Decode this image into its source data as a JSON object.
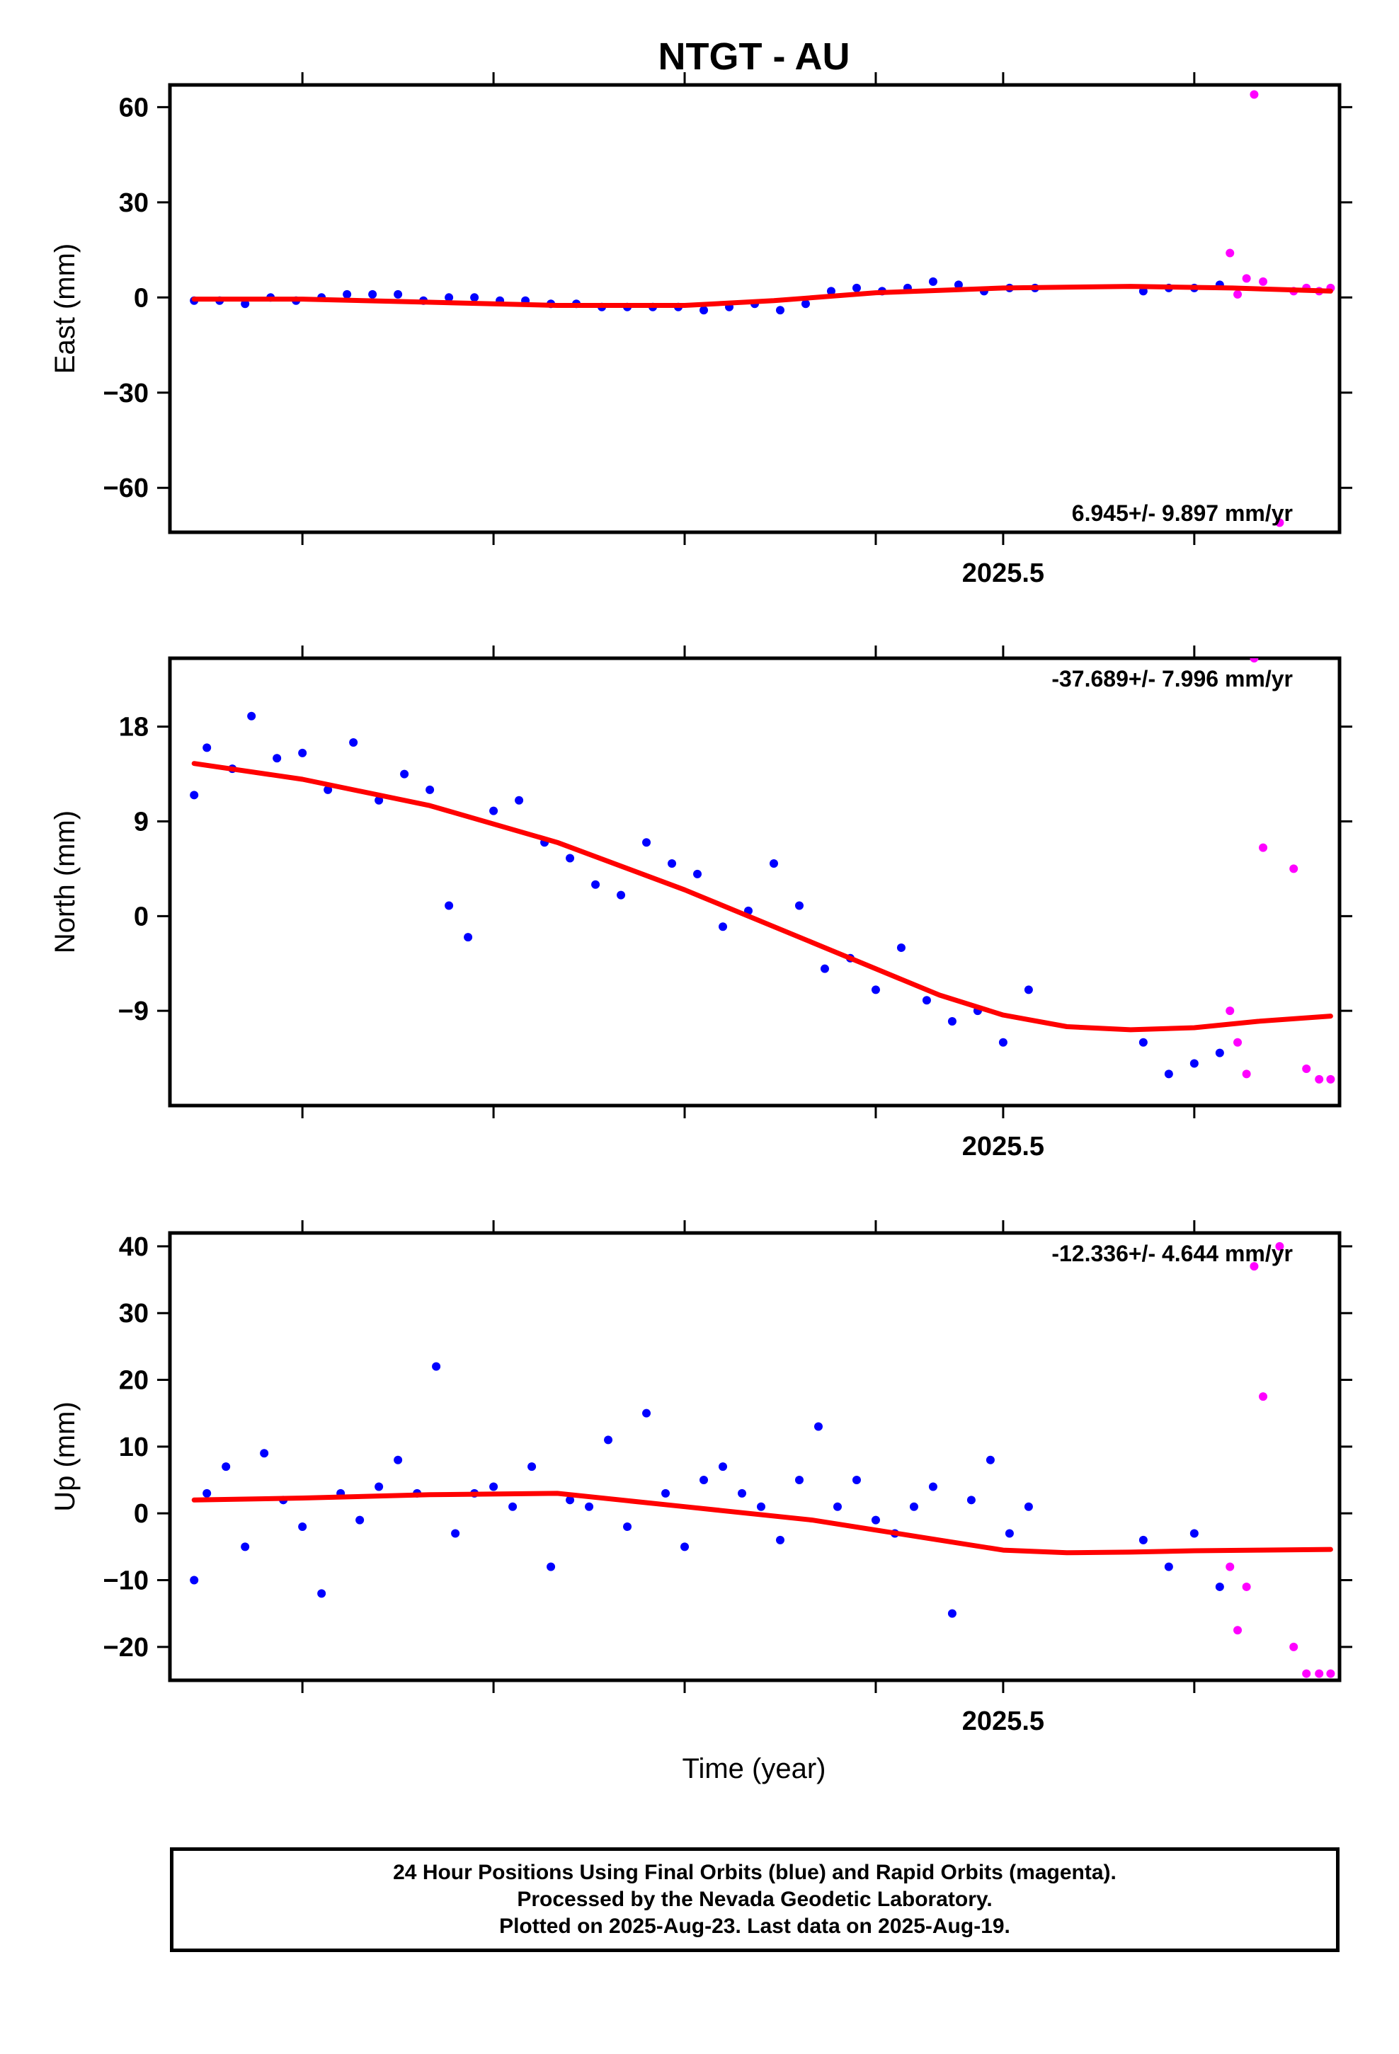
{
  "title": "NTGT - AU",
  "xlabel": "Time (year)",
  "caption": [
    "24 Hour Positions Using Final Orbits (blue) and Rapid Orbits (magenta).",
    "Processed by the Nevada Geodetic Laboratory.",
    "Plotted on 2025-Aug-23. Last data on 2025-Aug-19."
  ],
  "colors": {
    "final": "#0000ff",
    "rapid": "#ff00ff",
    "model": "#ff0000",
    "frame": "#000000"
  },
  "chart_data": [
    {
      "type": "scatter",
      "ylabel": "East (mm)",
      "rate_text": "6.945+/- 9.897 mm/yr",
      "rate_position": "bottom-right",
      "xlim": [
        2024.846,
        2025.764
      ],
      "ylim": [
        -74,
        67
      ],
      "x_tick_values": [
        2024.95,
        2025.1,
        2025.25,
        2025.4,
        2025.5,
        2025.65
      ],
      "x_tick_labels": [
        {
          "value": 2025.5,
          "label": "2025.5"
        }
      ],
      "y_ticks": [
        -60,
        -30,
        0,
        30,
        60
      ],
      "y_tick_labels": [
        "−60",
        "−30",
        "0",
        "30",
        "60"
      ],
      "series": [
        {
          "name": "Final Orbits",
          "color": "#0000ff",
          "x": [
            2024.865,
            2024.885,
            2024.905,
            2024.925,
            2024.945,
            2024.965,
            2024.985,
            2025.005,
            2025.025,
            2025.045,
            2025.065,
            2025.085,
            2025.105,
            2025.125,
            2025.145,
            2025.165,
            2025.185,
            2025.205,
            2025.225,
            2025.245,
            2025.265,
            2025.285,
            2025.305,
            2025.325,
            2025.345,
            2025.365,
            2025.385,
            2025.405,
            2025.425,
            2025.445,
            2025.465,
            2025.485,
            2025.505,
            2025.525,
            2025.61,
            2025.63,
            2025.65,
            2025.67
          ],
          "y": [
            -1,
            -1,
            -2,
            0,
            -1,
            0,
            1,
            1,
            1,
            -1,
            0,
            0,
            -1,
            -1,
            -2,
            -2,
            -3,
            -3,
            -3,
            -3,
            -4,
            -3,
            -2,
            -4,
            -2,
            2,
            3,
            2,
            3,
            5,
            4,
            2,
            3,
            3,
            2,
            3,
            3,
            4
          ]
        },
        {
          "name": "Rapid Orbits",
          "color": "#ff00ff",
          "x": [
            2025.678,
            2025.684,
            2025.691,
            2025.697,
            2025.704,
            2025.717,
            2025.728,
            2025.738,
            2025.748,
            2025.757
          ],
          "y": [
            14,
            1,
            6,
            64,
            5,
            -71,
            2,
            3,
            2,
            3
          ]
        },
        {
          "name": "Model",
          "color": "#ff0000",
          "x": [
            2024.865,
            2024.95,
            2025.05,
            2025.15,
            2025.25,
            2025.32,
            2025.4,
            2025.5,
            2025.6,
            2025.68,
            2025.757
          ],
          "y": [
            -0.5,
            -0.5,
            -1.5,
            -2.5,
            -2.5,
            -1,
            1.5,
            3,
            3.5,
            3,
            2
          ]
        }
      ]
    },
    {
      "type": "scatter",
      "ylabel": "North (mm)",
      "rate_text": "-37.689+/- 7.996 mm/yr",
      "rate_position": "top-right",
      "xlim": [
        2024.846,
        2025.764
      ],
      "ylim": [
        -18,
        24.5
      ],
      "x_tick_values": [
        2024.95,
        2025.1,
        2025.25,
        2025.4,
        2025.5,
        2025.65
      ],
      "x_tick_labels": [
        {
          "value": 2025.5,
          "label": "2025.5"
        }
      ],
      "y_ticks": [
        -9,
        0,
        9,
        18
      ],
      "y_tick_labels": [
        "−9",
        "0",
        "9",
        "18"
      ],
      "series": [
        {
          "name": "Final Orbits",
          "color": "#0000ff",
          "x": [
            2024.865,
            2024.875,
            2024.895,
            2024.91,
            2024.93,
            2024.95,
            2024.97,
            2024.99,
            2025.01,
            2025.03,
            2025.05,
            2025.065,
            2025.08,
            2025.1,
            2025.12,
            2025.14,
            2025.16,
            2025.18,
            2025.2,
            2025.22,
            2025.24,
            2025.26,
            2025.28,
            2025.3,
            2025.32,
            2025.34,
            2025.36,
            2025.38,
            2025.4,
            2025.42,
            2025.44,
            2025.46,
            2025.48,
            2025.5,
            2025.52,
            2025.61,
            2025.63,
            2025.65,
            2025.67
          ],
          "y": [
            11.5,
            16,
            14,
            19,
            15,
            15.5,
            12,
            16.5,
            11,
            13.5,
            12,
            1,
            -2,
            10,
            11,
            7,
            5.5,
            3,
            2,
            7,
            5,
            4,
            -1,
            0.5,
            5,
            1,
            -5,
            -4,
            -7,
            -3,
            -8,
            -10,
            -9,
            -12,
            -7,
            -12,
            -15,
            -14,
            -13
          ]
        },
        {
          "name": "Rapid Orbits",
          "color": "#ff00ff",
          "x": [
            2025.678,
            2025.684,
            2025.691,
            2025.697,
            2025.704,
            2025.728,
            2025.738,
            2025.748,
            2025.757
          ],
          "y": [
            -9,
            -12,
            -15,
            24.5,
            6.5,
            4.5,
            -14.5,
            -15.5,
            -15.5
          ]
        },
        {
          "name": "Model",
          "color": "#ff0000",
          "x": [
            2024.865,
            2024.95,
            2025.05,
            2025.15,
            2025.25,
            2025.35,
            2025.45,
            2025.5,
            2025.55,
            2025.6,
            2025.65,
            2025.7,
            2025.757
          ],
          "y": [
            14.5,
            13,
            10.5,
            7,
            2.5,
            -2.5,
            -7.5,
            -9.4,
            -10.5,
            -10.8,
            -10.6,
            -10,
            -9.5
          ]
        }
      ]
    },
    {
      "type": "scatter",
      "ylabel": "Up (mm)",
      "rate_text": "-12.336+/- 4.644 mm/yr",
      "rate_position": "top-right",
      "xlim": [
        2024.846,
        2025.764
      ],
      "ylim": [
        -25,
        42
      ],
      "x_tick_values": [
        2024.95,
        2025.1,
        2025.25,
        2025.4,
        2025.5,
        2025.65
      ],
      "x_tick_labels": [
        {
          "value": 2025.5,
          "label": "2025.5"
        }
      ],
      "y_ticks": [
        -20,
        -10,
        0,
        10,
        20,
        30,
        40
      ],
      "y_tick_labels": [
        "−20",
        "−10",
        "0",
        "10",
        "20",
        "30",
        "40"
      ],
      "series": [
        {
          "name": "Final Orbits",
          "color": "#0000ff",
          "x": [
            2024.865,
            2024.875,
            2024.89,
            2024.905,
            2024.92,
            2024.935,
            2024.95,
            2024.965,
            2024.98,
            2024.995,
            2025.01,
            2025.025,
            2025.04,
            2025.055,
            2025.07,
            2025.085,
            2025.1,
            2025.115,
            2025.13,
            2025.145,
            2025.16,
            2025.175,
            2025.19,
            2025.205,
            2025.22,
            2025.235,
            2025.25,
            2025.265,
            2025.28,
            2025.295,
            2025.31,
            2025.325,
            2025.34,
            2025.355,
            2025.37,
            2025.385,
            2025.4,
            2025.415,
            2025.43,
            2025.445,
            2025.46,
            2025.475,
            2025.49,
            2025.505,
            2025.52,
            2025.61,
            2025.63,
            2025.65,
            2025.67
          ],
          "y": [
            -10,
            3,
            7,
            -5,
            9,
            2,
            -2,
            -12,
            3,
            -1,
            4,
            8,
            3,
            22,
            -3,
            3,
            4,
            1,
            7,
            -8,
            2,
            1,
            11,
            -2,
            15,
            3,
            -5,
            5,
            7,
            3,
            1,
            -4,
            5,
            13,
            1,
            5,
            -1,
            -3,
            1,
            4,
            -15,
            2,
            8,
            -3,
            1,
            -4,
            -8,
            -3,
            -11
          ]
        },
        {
          "name": "Rapid Orbits",
          "color": "#ff00ff",
          "x": [
            2025.678,
            2025.684,
            2025.691,
            2025.697,
            2025.704,
            2025.717,
            2025.728,
            2025.738,
            2025.748,
            2025.757
          ],
          "y": [
            -8,
            -17.5,
            -11,
            37,
            17.5,
            40,
            -20,
            -24,
            -24,
            -24
          ]
        },
        {
          "name": "Model",
          "color": "#ff0000",
          "x": [
            2024.865,
            2024.95,
            2025.05,
            2025.15,
            2025.25,
            2025.35,
            2025.45,
            2025.5,
            2025.55,
            2025.6,
            2025.65,
            2025.7,
            2025.757
          ],
          "y": [
            2,
            2.3,
            2.8,
            3,
            1,
            -1,
            -4,
            -5.5,
            -5.9,
            -5.8,
            -5.6,
            -5.5,
            -5.4
          ]
        }
      ]
    }
  ]
}
